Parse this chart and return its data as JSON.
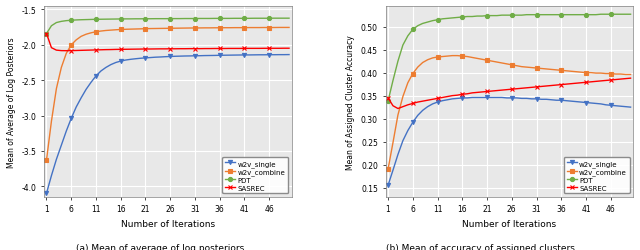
{
  "title_a": "(a) Mean of average of log posteriors",
  "title_b": "(b) Mean of accuracy of assigned clusters",
  "xlabel": "Number of Iterations",
  "ylabel_a": "Mean of Average of Log Posteriors",
  "ylabel_b": "Mean of Assigned Cluster Accuracy",
  "x_ticks": [
    1,
    6,
    11,
    16,
    21,
    26,
    31,
    36,
    41,
    46
  ],
  "ylim_a": [
    -4.15,
    -1.45
  ],
  "ylim_b": [
    0.13,
    0.545
  ],
  "yticks_a": [
    -4.0,
    -3.5,
    -3.0,
    -2.5,
    -2.0,
    -1.5
  ],
  "yticks_b": [
    0.15,
    0.2,
    0.25,
    0.3,
    0.35,
    0.4,
    0.45,
    0.5
  ],
  "legend_labels": [
    "w2v_single",
    "w2v_combine",
    "PDT",
    "SASREC"
  ],
  "colors": [
    "#4472c4",
    "#ed7d31",
    "#70ad47",
    "#ff0000"
  ],
  "markers": [
    "v",
    "s",
    "o",
    "x"
  ],
  "background_color": "#e8e8e8",
  "grid_color": "white",
  "series_a": {
    "w2v_single": [
      -4.1,
      -3.85,
      -3.62,
      -3.42,
      -3.22,
      -3.04,
      -2.88,
      -2.75,
      -2.63,
      -2.53,
      -2.44,
      -2.37,
      -2.32,
      -2.28,
      -2.25,
      -2.23,
      -2.215,
      -2.205,
      -2.197,
      -2.19,
      -2.185,
      -2.18,
      -2.175,
      -2.172,
      -2.168,
      -2.165,
      -2.162,
      -2.16,
      -2.158,
      -2.157,
      -2.155,
      -2.154,
      -2.152,
      -2.151,
      -2.15,
      -2.148,
      -2.147,
      -2.146,
      -2.145,
      -2.144,
      -2.143,
      -2.143,
      -2.142,
      -2.141,
      -2.141,
      -2.14,
      -2.14,
      -2.139,
      -2.139,
      -2.138
    ],
    "w2v_combine": [
      -3.63,
      -3.08,
      -2.62,
      -2.32,
      -2.12,
      -2.0,
      -1.93,
      -1.88,
      -1.85,
      -1.83,
      -1.815,
      -1.805,
      -1.797,
      -1.792,
      -1.787,
      -1.783,
      -1.78,
      -1.778,
      -1.776,
      -1.774,
      -1.772,
      -1.77,
      -1.769,
      -1.768,
      -1.767,
      -1.766,
      -1.765,
      -1.764,
      -1.763,
      -1.762,
      -1.762,
      -1.761,
      -1.76,
      -1.76,
      -1.759,
      -1.759,
      -1.758,
      -1.758,
      -1.757,
      -1.757,
      -1.757,
      -1.756,
      -1.756,
      -1.756,
      -1.755,
      -1.755,
      -1.755,
      -1.754,
      -1.754,
      -1.754
    ],
    "PDT": [
      -1.84,
      -1.73,
      -1.685,
      -1.668,
      -1.658,
      -1.652,
      -1.648,
      -1.645,
      -1.643,
      -1.641,
      -1.639,
      -1.638,
      -1.637,
      -1.636,
      -1.635,
      -1.634,
      -1.633,
      -1.633,
      -1.632,
      -1.632,
      -1.631,
      -1.631,
      -1.63,
      -1.63,
      -1.63,
      -1.629,
      -1.629,
      -1.629,
      -1.628,
      -1.628,
      -1.628,
      -1.627,
      -1.627,
      -1.627,
      -1.626,
      -1.626,
      -1.626,
      -1.626,
      -1.625,
      -1.625,
      -1.625,
      -1.625,
      -1.624,
      -1.624,
      -1.624,
      -1.624,
      -1.623,
      -1.623,
      -1.623,
      -1.623
    ],
    "SASREC": [
      -1.84,
      -2.04,
      -2.075,
      -2.082,
      -2.083,
      -2.082,
      -2.08,
      -2.078,
      -2.076,
      -2.074,
      -2.072,
      -2.07,
      -2.068,
      -2.067,
      -2.065,
      -2.064,
      -2.063,
      -2.062,
      -2.061,
      -2.06,
      -2.059,
      -2.059,
      -2.058,
      -2.057,
      -2.057,
      -2.056,
      -2.056,
      -2.055,
      -2.055,
      -2.054,
      -2.054,
      -2.054,
      -2.053,
      -2.053,
      -2.052,
      -2.052,
      -2.052,
      -2.051,
      -2.051,
      -2.051,
      -2.05,
      -2.05,
      -2.05,
      -2.05,
      -2.049,
      -2.049,
      -2.049,
      -2.049,
      -2.048,
      -2.048
    ]
  },
  "series_b": {
    "w2v_single": [
      0.155,
      0.188,
      0.222,
      0.252,
      0.274,
      0.292,
      0.307,
      0.318,
      0.326,
      0.332,
      0.336,
      0.339,
      0.341,
      0.343,
      0.344,
      0.345,
      0.345,
      0.346,
      0.346,
      0.346,
      0.346,
      0.346,
      0.346,
      0.346,
      0.345,
      0.345,
      0.345,
      0.344,
      0.344,
      0.343,
      0.343,
      0.342,
      0.342,
      0.341,
      0.34,
      0.34,
      0.339,
      0.338,
      0.337,
      0.336,
      0.335,
      0.334,
      0.333,
      0.332,
      0.33,
      0.329,
      0.328,
      0.327,
      0.326,
      0.325
    ],
    "w2v_combine": [
      0.19,
      0.248,
      0.308,
      0.348,
      0.378,
      0.398,
      0.412,
      0.422,
      0.428,
      0.432,
      0.434,
      0.435,
      0.436,
      0.437,
      0.437,
      0.436,
      0.435,
      0.433,
      0.431,
      0.429,
      0.427,
      0.425,
      0.423,
      0.421,
      0.419,
      0.417,
      0.415,
      0.413,
      0.412,
      0.411,
      0.41,
      0.409,
      0.408,
      0.407,
      0.406,
      0.405,
      0.404,
      0.403,
      0.402,
      0.401,
      0.4,
      0.4,
      0.399,
      0.399,
      0.398,
      0.398,
      0.397,
      0.397,
      0.396,
      0.396
    ],
    "PDT": [
      0.338,
      0.383,
      0.425,
      0.46,
      0.48,
      0.494,
      0.502,
      0.507,
      0.51,
      0.513,
      0.515,
      0.517,
      0.518,
      0.519,
      0.52,
      0.521,
      0.522,
      0.522,
      0.523,
      0.523,
      0.524,
      0.524,
      0.524,
      0.525,
      0.525,
      0.525,
      0.525,
      0.525,
      0.526,
      0.526,
      0.526,
      0.526,
      0.526,
      0.526,
      0.526,
      0.526,
      0.526,
      0.526,
      0.526,
      0.526,
      0.526,
      0.526,
      0.526,
      0.527,
      0.527,
      0.527,
      0.527,
      0.527,
      0.527,
      0.527
    ],
    "SASREC": [
      0.345,
      0.328,
      0.322,
      0.326,
      0.33,
      0.333,
      0.336,
      0.338,
      0.34,
      0.342,
      0.344,
      0.346,
      0.348,
      0.35,
      0.351,
      0.353,
      0.354,
      0.356,
      0.357,
      0.358,
      0.359,
      0.36,
      0.361,
      0.362,
      0.363,
      0.364,
      0.365,
      0.366,
      0.367,
      0.368,
      0.369,
      0.37,
      0.371,
      0.372,
      0.373,
      0.374,
      0.375,
      0.376,
      0.377,
      0.378,
      0.379,
      0.38,
      0.381,
      0.382,
      0.383,
      0.384,
      0.385,
      0.386,
      0.387,
      0.388
    ]
  }
}
